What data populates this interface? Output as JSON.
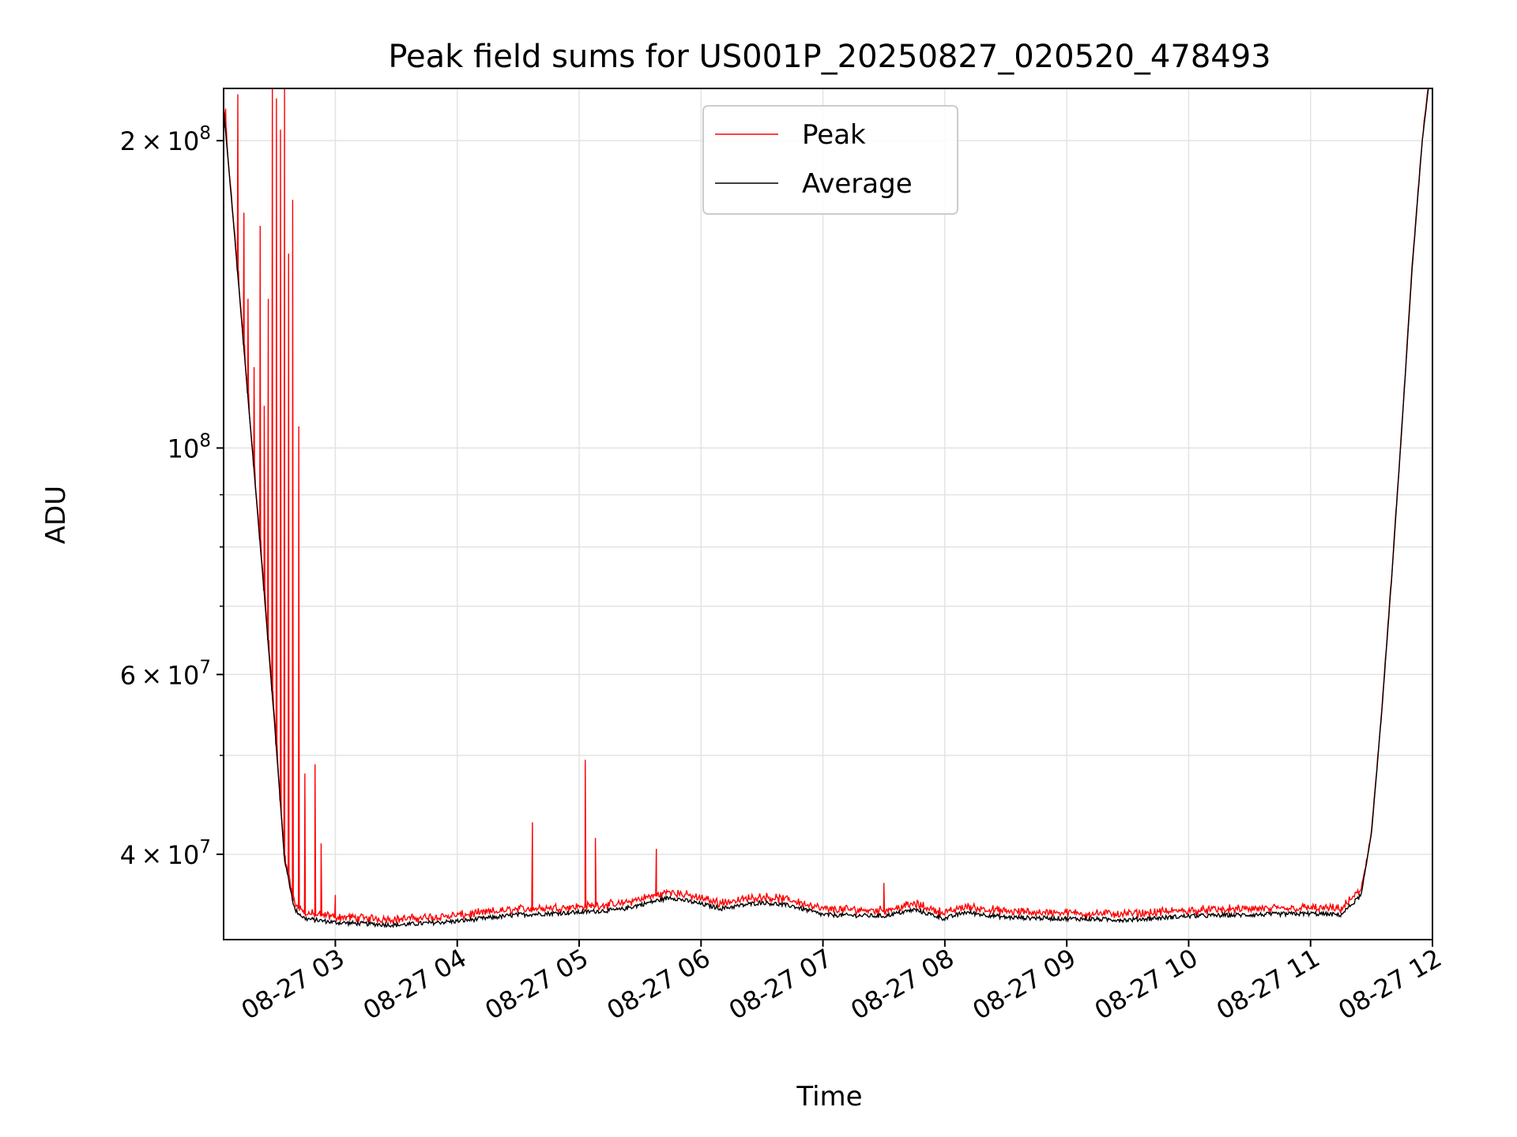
{
  "chart_data": {
    "type": "line",
    "title": "Peak field sums for US001P_20250827_020520_478493",
    "xlabel": "Time",
    "ylabel": "ADU",
    "x_scale": "time",
    "y_scale": "log",
    "xlim": [
      "2025-08-27T02:05",
      "2025-08-27T12:00"
    ],
    "ylim": [
      33000000,
      225000000
    ],
    "grid": true,
    "legend_position": "upper center",
    "x_ticks": [
      {
        "value": "2025-08-27T03:00",
        "label": "08-27 03"
      },
      {
        "value": "2025-08-27T04:00",
        "label": "08-27 04"
      },
      {
        "value": "2025-08-27T05:00",
        "label": "08-27 05"
      },
      {
        "value": "2025-08-27T06:00",
        "label": "08-27 06"
      },
      {
        "value": "2025-08-27T07:00",
        "label": "08-27 07"
      },
      {
        "value": "2025-08-27T08:00",
        "label": "08-27 08"
      },
      {
        "value": "2025-08-27T09:00",
        "label": "08-27 09"
      },
      {
        "value": "2025-08-27T10:00",
        "label": "08-27 10"
      },
      {
        "value": "2025-08-27T11:00",
        "label": "08-27 11"
      },
      {
        "value": "2025-08-27T12:00",
        "label": "08-27 12"
      }
    ],
    "y_ticks": [
      {
        "value": 40000000,
        "mantissa": "4",
        "base": "10",
        "exp": "7"
      },
      {
        "value": 60000000,
        "mantissa": "6",
        "base": "10",
        "exp": "7"
      },
      {
        "value": 100000000,
        "mantissa": "",
        "base": "10",
        "exp": "8"
      },
      {
        "value": 200000000,
        "mantissa": "2",
        "base": "10",
        "exp": "8"
      }
    ],
    "y_minor_ticks": [
      50000000,
      70000000,
      80000000,
      90000000
    ],
    "series": [
      {
        "name": "Average",
        "color": "#000000",
        "x": [
          "2025-08-27T02:05",
          "2025-08-27T02:10",
          "2025-08-27T02:15",
          "2025-08-27T02:20",
          "2025-08-27T02:25",
          "2025-08-27T02:30",
          "2025-08-27T02:35",
          "2025-08-27T02:40",
          "2025-08-27T02:45",
          "2025-08-27T03:00",
          "2025-08-27T03:30",
          "2025-08-27T04:00",
          "2025-08-27T04:30",
          "2025-08-27T05:00",
          "2025-08-27T05:20",
          "2025-08-27T05:45",
          "2025-08-27T06:10",
          "2025-08-27T06:30",
          "2025-08-27T06:45",
          "2025-08-27T07:00",
          "2025-08-27T07:30",
          "2025-08-27T07:45",
          "2025-08-27T08:00",
          "2025-08-27T08:10",
          "2025-08-27T08:30",
          "2025-08-27T09:00",
          "2025-08-27T09:30",
          "2025-08-27T10:00",
          "2025-08-27T10:30",
          "2025-08-27T11:00",
          "2025-08-27T11:15",
          "2025-08-27T11:25",
          "2025-08-27T11:30",
          "2025-08-27T11:35",
          "2025-08-27T11:40",
          "2025-08-27T11:45",
          "2025-08-27T11:50",
          "2025-08-27T11:55",
          "2025-08-27T11:58"
        ],
        "y": [
          215000000,
          165000000,
          125000000,
          95000000,
          72000000,
          54000000,
          39500000,
          35300000,
          34600000,
          34300000,
          34100000,
          34400000,
          34900000,
          35100000,
          35300000,
          36300000,
          35400000,
          35900000,
          35600000,
          34900000,
          34800000,
          35300000,
          34600000,
          35100000,
          34700000,
          34600000,
          34500000,
          34800000,
          34900000,
          35000000,
          34900000,
          36500000,
          42000000,
          55000000,
          75000000,
          105000000,
          150000000,
          200000000,
          225000000
        ]
      },
      {
        "name": "Peak",
        "color": "#ff0000",
        "spikes": [
          {
            "x": "2025-08-27T02:06",
            "y": 215000000
          },
          {
            "x": "2025-08-27T02:12",
            "y": 222000000
          },
          {
            "x": "2025-08-27T02:15",
            "y": 170000000
          },
          {
            "x": "2025-08-27T02:17",
            "y": 140000000
          },
          {
            "x": "2025-08-27T02:20",
            "y": 120000000
          },
          {
            "x": "2025-08-27T02:23",
            "y": 165000000
          },
          {
            "x": "2025-08-27T02:25",
            "y": 110000000
          },
          {
            "x": "2025-08-27T02:27",
            "y": 140000000
          },
          {
            "x": "2025-08-27T02:29",
            "y": 225000000
          },
          {
            "x": "2025-08-27T02:31",
            "y": 220000000
          },
          {
            "x": "2025-08-27T02:33",
            "y": 205000000
          },
          {
            "x": "2025-08-27T02:35",
            "y": 225000000
          },
          {
            "x": "2025-08-27T02:37",
            "y": 155000000
          },
          {
            "x": "2025-08-27T02:39",
            "y": 175000000
          },
          {
            "x": "2025-08-27T02:42",
            "y": 105000000
          },
          {
            "x": "2025-08-27T02:45",
            "y": 48000000
          },
          {
            "x": "2025-08-27T02:50",
            "y": 49000000
          },
          {
            "x": "2025-08-27T02:53",
            "y": 41000000
          },
          {
            "x": "2025-08-27T03:00",
            "y": 36500000
          },
          {
            "x": "2025-08-27T04:37",
            "y": 43000000
          },
          {
            "x": "2025-08-27T05:03",
            "y": 49500000
          },
          {
            "x": "2025-08-27T05:08",
            "y": 41500000
          },
          {
            "x": "2025-08-27T05:38",
            "y": 40500000
          },
          {
            "x": "2025-08-27T07:30",
            "y": 37500000
          }
        ]
      }
    ]
  }
}
